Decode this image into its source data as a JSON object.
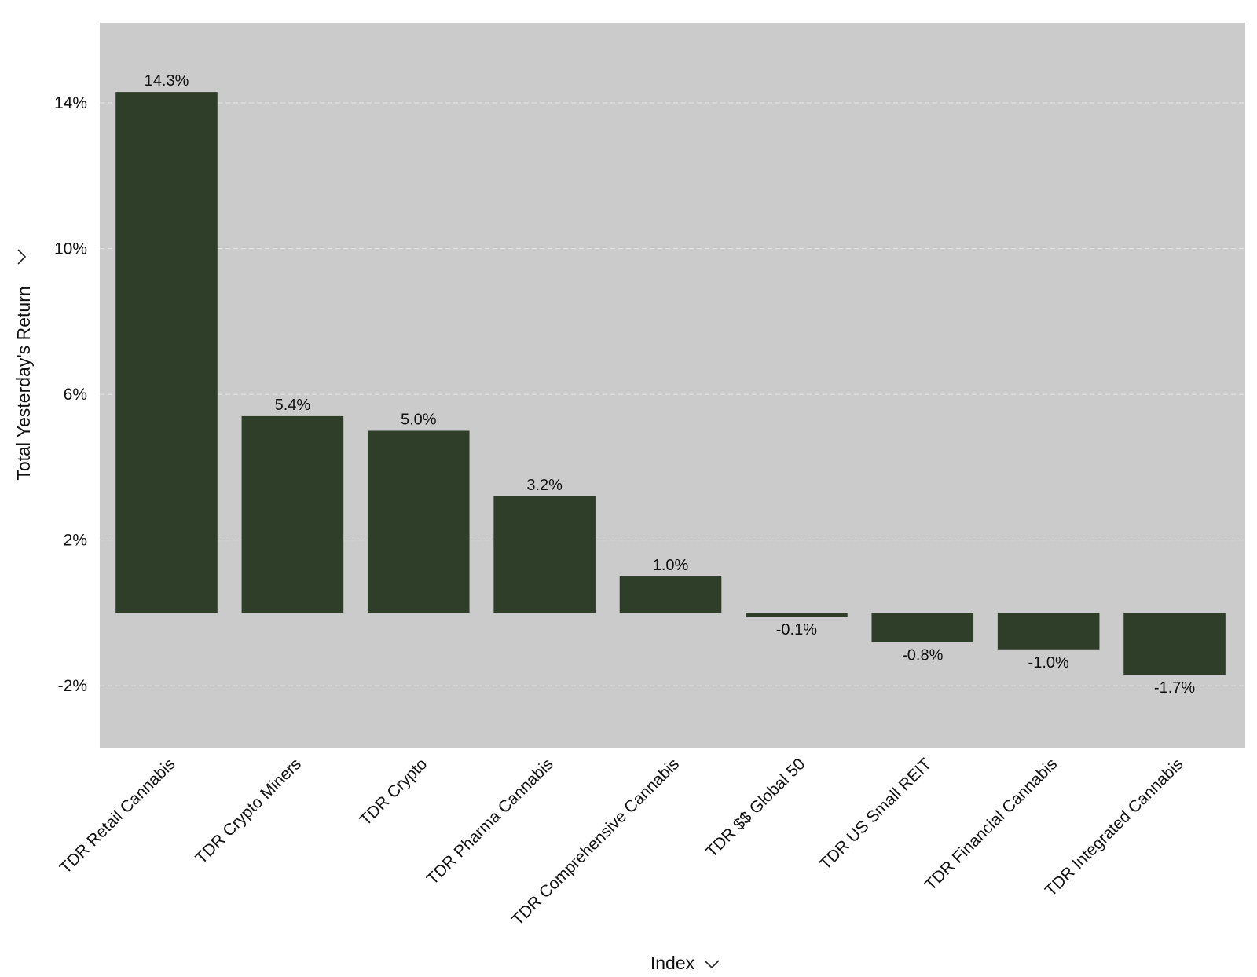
{
  "chart_data": {
    "type": "bar",
    "categories": [
      "TDR Retail Cannabis",
      "TDR Crypto Miners",
      "TDR Crypto",
      "TDR Pharma Cannabis",
      "TDR Comprehensive Cannabis",
      "TDR $$ Global 50",
      "TDR US Small REIT",
      "TDR Financial Cannabis",
      "TDR Integrated Cannabis"
    ],
    "values": [
      14.3,
      5.4,
      5.0,
      3.2,
      1.0,
      -0.1,
      -0.8,
      -1.0,
      -1.7
    ],
    "value_labels": [
      "14.3%",
      "5.4%",
      "5.0%",
      "3.2%",
      "1.0%",
      "-0.1%",
      "-0.8%",
      "-1.0%",
      "-1.7%"
    ],
    "title": "",
    "xlabel": "Index",
    "ylabel": "Total Yesterday's Return",
    "ylim": [
      -3.7,
      16.2
    ],
    "yticks": [
      14,
      10,
      6,
      2,
      -2
    ],
    "ytick_labels": [
      "14%",
      "10%",
      "6%",
      "2%",
      "-2%"
    ],
    "grid": true,
    "legend": "none"
  },
  "colors": {
    "bar": "#2e3e28",
    "plot_background": "#cbcbcb",
    "gridline": "#e6e6e6"
  },
  "icons": {
    "xlabel_dropdown": "chevron-down-icon",
    "ylabel_dropdown": "chevron-down-icon"
  }
}
